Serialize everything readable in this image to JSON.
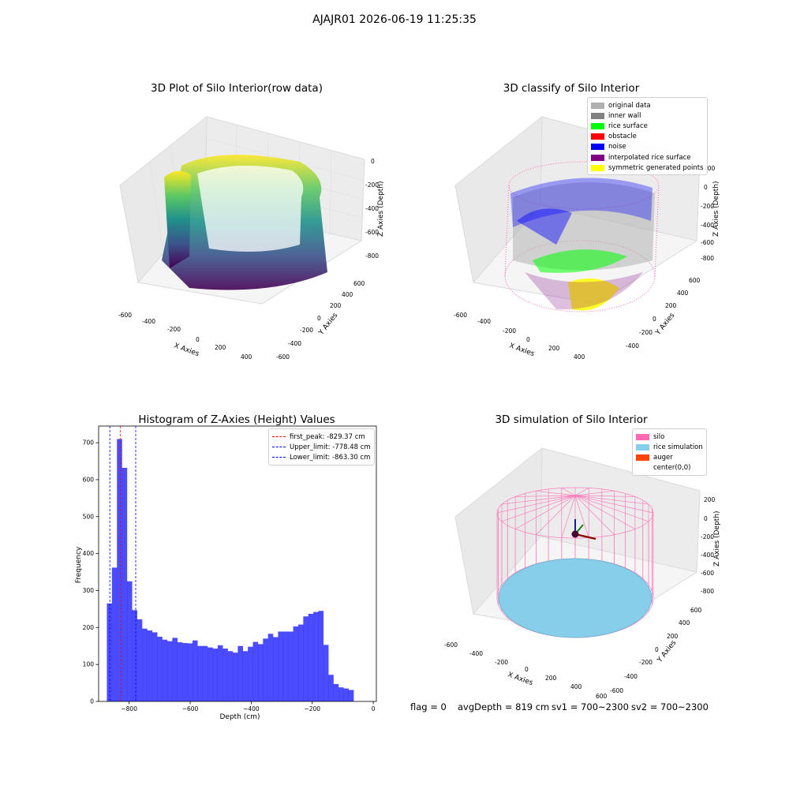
{
  "suptitle": "AJAJR01 2026-06-19 11:25:35",
  "panels": {
    "raw": {
      "title": "3D Plot of Silo Interior(row data)",
      "xlabel": "X Axies",
      "ylabel": "Y Axies",
      "zlabel": "Z Axies (Depth)",
      "xticks": [
        "-600",
        "-400",
        "-200",
        "0",
        "200",
        "400"
      ],
      "yticks": [
        "600",
        "400",
        "200",
        "0",
        "-200",
        "-400",
        "-600"
      ],
      "zticks": [
        "0",
        "-200",
        "-400",
        "-600",
        "-800"
      ]
    },
    "classify": {
      "title": "3D classify of Silo Interior",
      "xlabel": "X Axies",
      "ylabel": "Y Axies",
      "zlabel": "Z Axies (Depth)",
      "xticks": [
        "-600",
        "-400",
        "-200",
        "0",
        "200",
        "400"
      ],
      "yticks": [
        "600",
        "400",
        "200",
        "0",
        "-200",
        "-400"
      ],
      "zticks": [
        "200",
        "0",
        "-200",
        "-400",
        "-600",
        "-800"
      ],
      "legend": [
        {
          "label": "original data",
          "color": "#b0b0b0"
        },
        {
          "label": "inner wall",
          "color": "#808080"
        },
        {
          "label": "rice surface",
          "color": "#00ff00"
        },
        {
          "label": "obstacle",
          "color": "#ff0000"
        },
        {
          "label": "noise",
          "color": "#0000ff"
        },
        {
          "label": "interpolated rice surface",
          "color": "#800080"
        },
        {
          "label": "symmetric generated points",
          "color": "#ffff00"
        }
      ]
    },
    "simulation": {
      "title": "3D simulation of Silo Interior",
      "xlabel": "X Axies",
      "ylabel": "Y Axies",
      "zlabel": "Z Axies (Depth)",
      "xticks": [
        "-600",
        "-400",
        "-200",
        "0",
        "200",
        "400",
        "600"
      ],
      "yticks": [
        "600",
        "400",
        "200",
        "0",
        "-200",
        "-400",
        "-600"
      ],
      "zticks": [
        "200",
        "0",
        "-200",
        "-400",
        "-600",
        "-800"
      ],
      "legend": [
        {
          "label": "silo",
          "color": "#ff69b4"
        },
        {
          "label": "rice simulation",
          "color": "#87ceeb"
        },
        {
          "label": "auger",
          "color": "#ff4500"
        },
        {
          "label": "center(0,0)",
          "color": "#ffffff"
        }
      ]
    }
  },
  "chart_data": {
    "type": "bar",
    "title": "Histogram of Z-Axies (Height) Values",
    "xlabel": "Depth (cm)",
    "ylabel": "Frequency",
    "xlim": [
      -900,
      10
    ],
    "ylim": [
      0,
      745
    ],
    "xticks": [
      -800,
      -600,
      -400,
      -200,
      0
    ],
    "yticks": [
      0,
      100,
      200,
      300,
      400,
      500,
      600,
      700
    ],
    "bin_start": -873,
    "bin_width": 16.5,
    "values": [
      265,
      362,
      710,
      632,
      325,
      247,
      222,
      197,
      192,
      187,
      175,
      167,
      163,
      172,
      160,
      158,
      157,
      165,
      150,
      150,
      146,
      143,
      152,
      143,
      136,
      132,
      150,
      136,
      148,
      161,
      155,
      170,
      183,
      174,
      189,
      189,
      189,
      203,
      208,
      230,
      237,
      242,
      245,
      153,
      72,
      47,
      38,
      35,
      31
    ],
    "bar_color": "#0000ff",
    "bar_alpha": 0.7,
    "vlines": [
      {
        "label": "first_peak: -829.37 cm",
        "x": -829.37,
        "color": "#ff0000"
      },
      {
        "label": "Upper_limit: -778.48 cm",
        "x": -778.48,
        "color": "#0000ff"
      },
      {
        "label": "Lower_limit: -863.30 cm",
        "x": -863.3,
        "color": "#0000ff"
      }
    ],
    "legend_position": "top-right"
  },
  "status": {
    "flag": "flag = 0",
    "avg_depth": "avgDepth = 819 cm",
    "sv1": "sv1 = 700~2300",
    "sv2": "sv2 = 700~2300"
  }
}
